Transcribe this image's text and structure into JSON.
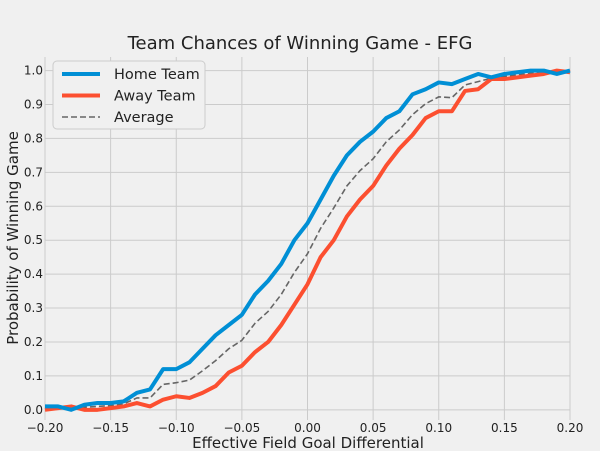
{
  "chart_data": {
    "type": "line",
    "title": "Team Chances of Winning Game - EFG",
    "xlabel": "Effective Field Goal Differential",
    "ylabel": "Probability of Winning Game",
    "xlim": [
      -0.2,
      0.2
    ],
    "ylim": [
      -0.03,
      1.04
    ],
    "xticks": [
      "−0.20",
      "−0.15",
      "−0.10",
      "−0.05",
      "0.00",
      "0.05",
      "0.10",
      "0.15",
      "0.20"
    ],
    "xtick_values": [
      -0.2,
      -0.15,
      -0.1,
      -0.05,
      0.0,
      0.05,
      0.1,
      0.15,
      0.2
    ],
    "yticks": [
      "0.0",
      "0.1",
      "0.2",
      "0.3",
      "0.4",
      "0.5",
      "0.6",
      "0.7",
      "0.8",
      "0.9",
      "1.0"
    ],
    "ytick_values": [
      0.0,
      0.1,
      0.2,
      0.3,
      0.4,
      0.5,
      0.6,
      0.7,
      0.8,
      0.9,
      1.0
    ],
    "grid": true,
    "legend_position": "top-left",
    "x": [
      -0.2,
      -0.19,
      -0.18,
      -0.17,
      -0.16,
      -0.15,
      -0.14,
      -0.13,
      -0.12,
      -0.11,
      -0.1,
      -0.09,
      -0.08,
      -0.07,
      -0.06,
      -0.05,
      -0.04,
      -0.03,
      -0.02,
      -0.01,
      0.0,
      0.01,
      0.02,
      0.03,
      0.04,
      0.05,
      0.06,
      0.07,
      0.08,
      0.09,
      0.1,
      0.11,
      0.12,
      0.13,
      0.14,
      0.15,
      0.16,
      0.17,
      0.18,
      0.19,
      0.2
    ],
    "series": [
      {
        "name": "Home Team",
        "color": "#008fd5",
        "style": "solid",
        "values": [
          0.01,
          0.01,
          0.0,
          0.015,
          0.02,
          0.02,
          0.025,
          0.05,
          0.06,
          0.12,
          0.12,
          0.14,
          0.18,
          0.22,
          0.25,
          0.28,
          0.34,
          0.38,
          0.43,
          0.5,
          0.55,
          0.62,
          0.69,
          0.75,
          0.79,
          0.82,
          0.86,
          0.88,
          0.93,
          0.945,
          0.965,
          0.96,
          0.975,
          0.99,
          0.98,
          0.99,
          0.995,
          1.0,
          1.0,
          0.99,
          1.0
        ]
      },
      {
        "name": "Away Team",
        "color": "#fc4f30",
        "style": "solid",
        "values": [
          0.0,
          0.005,
          0.01,
          0.0,
          0.0,
          0.005,
          0.01,
          0.02,
          0.01,
          0.03,
          0.04,
          0.035,
          0.05,
          0.07,
          0.11,
          0.13,
          0.17,
          0.2,
          0.25,
          0.31,
          0.37,
          0.45,
          0.5,
          0.57,
          0.62,
          0.66,
          0.72,
          0.77,
          0.81,
          0.86,
          0.88,
          0.88,
          0.94,
          0.945,
          0.975,
          0.975,
          0.98,
          0.985,
          0.99,
          1.0,
          0.995
        ]
      },
      {
        "name": "Average",
        "color": "#666666",
        "style": "dashed",
        "values": [
          0.005,
          0.0075,
          0.005,
          0.0075,
          0.01,
          0.0125,
          0.0175,
          0.035,
          0.035,
          0.075,
          0.08,
          0.0875,
          0.115,
          0.145,
          0.18,
          0.205,
          0.255,
          0.29,
          0.34,
          0.405,
          0.46,
          0.535,
          0.595,
          0.66,
          0.705,
          0.74,
          0.79,
          0.825,
          0.87,
          0.9025,
          0.9225,
          0.92,
          0.9575,
          0.9675,
          0.9775,
          0.9825,
          0.9875,
          0.9925,
          0.995,
          0.995,
          0.9975
        ]
      }
    ]
  }
}
